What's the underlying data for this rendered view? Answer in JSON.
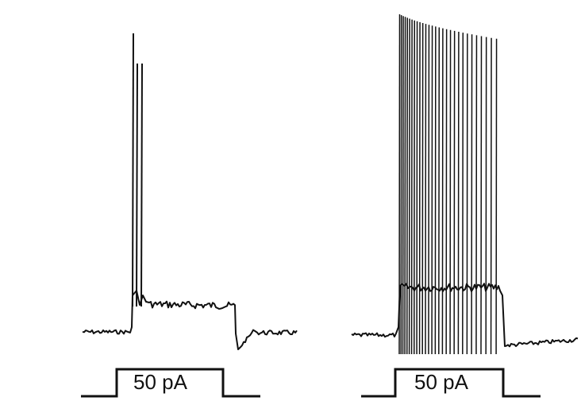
{
  "panels": [
    {
      "name": "left",
      "stimulus_label": "50 pA",
      "description_type": "current-clamp recording, brief burst then plateau",
      "spike_count": 3
    },
    {
      "name": "right",
      "stimulus_label": "50 pA",
      "description_type": "current-clamp recording, sustained high-frequency firing",
      "spike_count": 32
    }
  ],
  "colors": {
    "trace": "#111111",
    "background": "#ffffff"
  }
}
